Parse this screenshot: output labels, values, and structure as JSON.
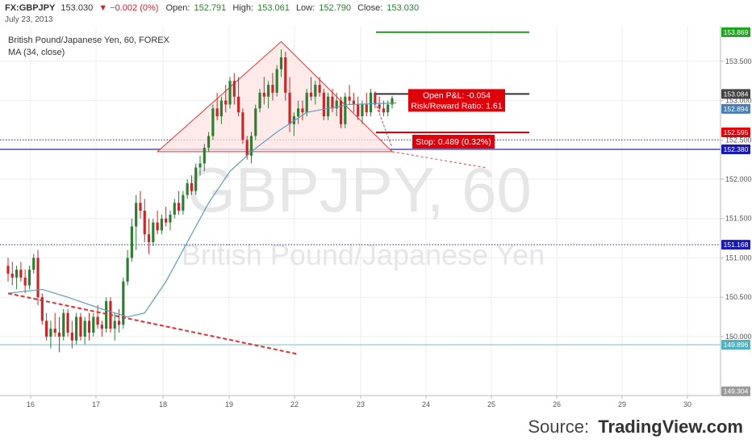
{
  "header": {
    "symbol": "FX:GBPJPY",
    "last": "153.030",
    "change": "▼ −0.002 (0%)",
    "open_label": "Open:",
    "open": "152.791",
    "high_label": "High:",
    "high": "153.061",
    "low_label": "Low:",
    "low": "152.790",
    "close_label": "Close:",
    "close": "153.030",
    "date": "July 23, 2013"
  },
  "legend": {
    "title": "British Pound/Japanese Yen, 60, FOREX",
    "ma": "MA (34, close)"
  },
  "watermark": {
    "line1": "GBPJPY, 60",
    "line2": "British Pound/Japanese Yen"
  },
  "source": {
    "label": "Source:",
    "brand": "TradingView.com"
  },
  "colors": {
    "up": "#2e7d32",
    "down": "#c62828",
    "ma": "#5b9bb8",
    "triangle": "#e53935",
    "triangle_fill": "#fde3e1",
    "hline_blue": "#2a2aa8",
    "hline_cyan": "#7fc7cf",
    "target_green": "#22a322",
    "stop_red": "#e0000a",
    "axis_text": "#555555"
  },
  "chart_data": {
    "type": "candlestick",
    "timeframe": "60",
    "x_ticks": [
      "16",
      "17",
      "18",
      "19",
      "22",
      "23",
      "24",
      "25",
      "26",
      "29",
      "30"
    ],
    "y_ticks": [
      "153.500",
      "153.000",
      "152.500",
      "152.000",
      "151.500",
      "151.000",
      "150.500",
      "150.000"
    ],
    "ylim": [
      149.25,
      153.95
    ],
    "price_labels": [
      {
        "value": 153.869,
        "text": "153.869",
        "color": "#22a322"
      },
      {
        "value": 153.084,
        "text": "153.084",
        "color": "#444444"
      },
      {
        "value": 152.894,
        "text": "152.894",
        "color": "#4a7fb0"
      },
      {
        "value": 152.595,
        "text": "152.595",
        "color": "#e0000a"
      },
      {
        "value": 152.38,
        "text": "152.380",
        "color": "#1a1ab0"
      },
      {
        "value": 151.168,
        "text": "151.168",
        "color": "#1a1ab0"
      },
      {
        "value": 149.896,
        "text": "149.896",
        "color": "#4fb3bd"
      },
      {
        "value": 149.304,
        "text": "149.304",
        "color": "#999999"
      }
    ],
    "horizontal_lines": [
      {
        "value": 152.38,
        "style": "solid",
        "color": "#2a2aa8"
      },
      {
        "value": 152.5,
        "style": "dotted",
        "color": "#2a2aa8"
      },
      {
        "value": 151.168,
        "style": "dotted",
        "color": "#2a2aa8"
      },
      {
        "value": 149.896,
        "style": "solid",
        "color": "#7fc7cf"
      }
    ],
    "position": {
      "entry": 153.084,
      "target": 153.869,
      "stop": 152.595,
      "pnl_label": "Open P&L: -0.054",
      "rr_label": "Risk/Reward Ratio: 1.61",
      "stop_label": "Stop: 0.489 (0.32%)"
    },
    "candles": [
      [
        150.9,
        151.0,
        150.7,
        150.8
      ],
      [
        150.8,
        150.95,
        150.65,
        150.75
      ],
      [
        150.75,
        150.9,
        150.6,
        150.85
      ],
      [
        150.85,
        150.95,
        150.7,
        150.75
      ],
      [
        150.75,
        150.85,
        150.55,
        150.65
      ],
      [
        150.65,
        150.9,
        150.6,
        150.85
      ],
      [
        150.85,
        151.05,
        150.8,
        151.0
      ],
      [
        151.0,
        151.1,
        150.4,
        150.5
      ],
      [
        150.5,
        150.55,
        150.15,
        150.2
      ],
      [
        150.2,
        150.3,
        149.95,
        150.0
      ],
      [
        150.0,
        150.2,
        149.85,
        150.1
      ],
      [
        150.1,
        150.3,
        150.0,
        150.05
      ],
      [
        150.05,
        150.25,
        149.8,
        150.0
      ],
      [
        150.0,
        150.35,
        149.95,
        150.3
      ],
      [
        150.3,
        150.35,
        150.0,
        150.05
      ],
      [
        150.05,
        150.2,
        149.85,
        149.95
      ],
      [
        149.95,
        150.3,
        149.9,
        150.25
      ],
      [
        150.25,
        150.3,
        149.95,
        150.0
      ],
      [
        150.0,
        150.25,
        149.9,
        150.2
      ],
      [
        150.2,
        150.3,
        149.95,
        150.05
      ],
      [
        150.05,
        150.3,
        150.0,
        150.25
      ],
      [
        150.25,
        150.4,
        150.1,
        150.15
      ],
      [
        150.15,
        150.2,
        150.0,
        150.1
      ],
      [
        150.1,
        150.5,
        150.05,
        150.45
      ],
      [
        150.45,
        150.5,
        150.05,
        150.1
      ],
      [
        150.1,
        150.3,
        149.95,
        150.2
      ],
      [
        150.2,
        150.35,
        150.05,
        150.15
      ],
      [
        150.15,
        150.75,
        150.1,
        150.7
      ],
      [
        150.7,
        151.1,
        150.65,
        151.0
      ],
      [
        151.0,
        151.5,
        150.95,
        151.4
      ],
      [
        151.4,
        151.8,
        151.1,
        151.7
      ],
      [
        151.7,
        151.85,
        151.5,
        151.6
      ],
      [
        151.6,
        151.75,
        151.2,
        151.3
      ],
      [
        151.3,
        151.5,
        151.05,
        151.2
      ],
      [
        151.2,
        151.5,
        151.15,
        151.45
      ],
      [
        151.45,
        151.6,
        151.3,
        151.35
      ],
      [
        151.35,
        151.55,
        151.3,
        151.5
      ],
      [
        151.5,
        151.65,
        151.4,
        151.45
      ],
      [
        151.45,
        151.6,
        151.35,
        151.55
      ],
      [
        151.55,
        151.75,
        151.5,
        151.7
      ],
      [
        151.7,
        151.85,
        151.55,
        151.6
      ],
      [
        151.6,
        151.85,
        151.55,
        151.8
      ],
      [
        151.8,
        152.0,
        151.75,
        151.95
      ],
      [
        151.95,
        152.05,
        151.8,
        151.85
      ],
      [
        151.85,
        152.2,
        151.8,
        152.15
      ],
      [
        152.15,
        152.3,
        152.05,
        152.2
      ],
      [
        152.2,
        152.45,
        152.1,
        152.4
      ],
      [
        152.4,
        152.6,
        152.35,
        152.55
      ],
      [
        152.55,
        152.95,
        152.5,
        152.9
      ],
      [
        152.9,
        153.1,
        152.75,
        152.8
      ],
      [
        152.8,
        153.05,
        152.7,
        153.0
      ],
      [
        153.0,
        153.2,
        152.85,
        152.95
      ],
      [
        152.95,
        153.3,
        152.9,
        153.25
      ],
      [
        153.25,
        153.35,
        152.95,
        153.05
      ],
      [
        153.05,
        153.3,
        152.8,
        152.85
      ],
      [
        152.85,
        152.9,
        152.45,
        152.5
      ],
      [
        152.5,
        152.55,
        152.25,
        152.3
      ],
      [
        152.3,
        152.6,
        152.2,
        152.55
      ],
      [
        152.55,
        152.95,
        152.5,
        152.9
      ],
      [
        152.9,
        153.15,
        152.85,
        153.1
      ],
      [
        153.1,
        153.3,
        152.95,
        153.05
      ],
      [
        153.05,
        153.25,
        152.9,
        153.2
      ],
      [
        153.2,
        153.35,
        153.0,
        153.1
      ],
      [
        153.1,
        153.45,
        153.05,
        153.4
      ],
      [
        153.4,
        153.65,
        153.3,
        153.55
      ],
      [
        153.55,
        153.62,
        153.0,
        153.1
      ],
      [
        153.1,
        153.3,
        152.6,
        152.7
      ],
      [
        152.7,
        152.85,
        152.55,
        152.8
      ],
      [
        152.8,
        153.0,
        152.7,
        152.9
      ],
      [
        152.9,
        153.0,
        152.75,
        152.85
      ],
      [
        152.85,
        153.15,
        152.8,
        153.1
      ],
      [
        153.1,
        153.3,
        153.0,
        153.05
      ],
      [
        153.05,
        153.25,
        152.95,
        153.2
      ],
      [
        153.2,
        153.3,
        153.05,
        153.1
      ],
      [
        153.1,
        153.15,
        152.75,
        152.8
      ],
      [
        152.8,
        153.1,
        152.75,
        153.05
      ],
      [
        153.05,
        153.15,
        152.85,
        152.9
      ],
      [
        152.9,
        153.1,
        152.8,
        153.0
      ],
      [
        153.0,
        153.05,
        152.65,
        152.7
      ],
      [
        152.7,
        153.1,
        152.65,
        153.05
      ],
      [
        153.05,
        153.2,
        152.95,
        153.0
      ],
      [
        153.0,
        153.1,
        152.85,
        152.95
      ],
      [
        152.95,
        153.05,
        152.75,
        152.8
      ],
      [
        152.8,
        153.0,
        152.7,
        152.95
      ],
      [
        152.95,
        153.1,
        152.8,
        152.85
      ],
      [
        152.85,
        153.15,
        152.8,
        153.1
      ],
      [
        153.1,
        153.12,
        152.9,
        152.95
      ],
      [
        152.95,
        153.05,
        152.85,
        152.9
      ],
      [
        152.9,
        153.0,
        152.8,
        152.85
      ],
      [
        152.85,
        153.0,
        152.8,
        152.95
      ],
      [
        152.95,
        153.06,
        152.9,
        153.03
      ]
    ],
    "ma34": [
      [
        150.55,
        0
      ],
      [
        150.6,
        8
      ],
      [
        150.5,
        14
      ],
      [
        150.35,
        22
      ],
      [
        150.25,
        28
      ],
      [
        150.3,
        32
      ],
      [
        150.7,
        37
      ],
      [
        151.2,
        42
      ],
      [
        151.7,
        47
      ],
      [
        152.1,
        52
      ],
      [
        152.35,
        57
      ],
      [
        152.6,
        63
      ],
      [
        152.85,
        70
      ],
      [
        152.95,
        80
      ],
      [
        152.97,
        91
      ]
    ],
    "triangle": [
      [
        153.75,
        64
      ],
      [
        152.35,
        35
      ],
      [
        152.35,
        90
      ]
    ],
    "downtrend_line": {
      "from": [
        150.55,
        0
      ],
      "to": [
        149.75,
        60
      ]
    }
  }
}
